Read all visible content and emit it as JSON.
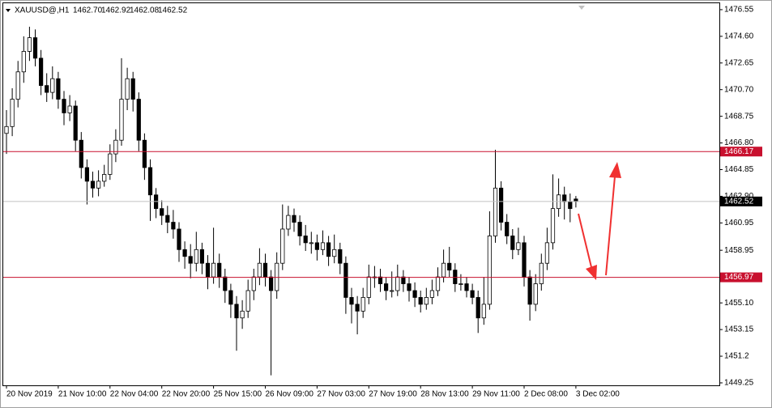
{
  "chart_data": {
    "type": "candlestick",
    "symbol": "XAUUSD@,H1",
    "header_values": [
      "1462.70",
      "1462.92",
      "1462.08",
      "1462.52"
    ],
    "ylim": [
      1449.07,
      1477.02
    ],
    "yticks": [
      1449.25,
      1451.2,
      1453.15,
      {
        "value": 1455.1,
        "label": "1455.10"
      },
      1457.05,
      1458.95,
      1460.95,
      {
        "value": 1462.9,
        "label": "1462.90"
      },
      1464.85,
      {
        "value": 1466.8,
        "label": "1466.80"
      },
      1468.75,
      {
        "value": 1470.7,
        "label": "1470.70"
      },
      1472.65,
      {
        "value": 1474.6,
        "label": "1474.60"
      },
      1476.55
    ],
    "categories": [
      "20 Nov 2019",
      null,
      null,
      null,
      null,
      null,
      null,
      null,
      null,
      "21 Nov 10:00",
      null,
      null,
      null,
      null,
      null,
      null,
      null,
      null,
      "22 Nov 04:00",
      null,
      null,
      null,
      null,
      null,
      null,
      null,
      null,
      "22 Nov 20:00",
      null,
      null,
      null,
      null,
      null,
      null,
      null,
      null,
      "25 Nov 15:00",
      null,
      null,
      null,
      null,
      null,
      null,
      null,
      null,
      "26 Nov 09:00",
      null,
      null,
      null,
      null,
      null,
      null,
      null,
      null,
      "27 Nov 03:00",
      null,
      null,
      null,
      null,
      null,
      null,
      null,
      null,
      "27 Nov 19:00",
      null,
      null,
      null,
      null,
      null,
      null,
      null,
      null,
      "28 Nov 13:00",
      null,
      null,
      null,
      null,
      null,
      null,
      null,
      null,
      "29 Nov 11:00",
      null,
      null,
      null,
      null,
      null,
      null,
      null,
      null,
      "2 Dec 08:00",
      null,
      null,
      null,
      null,
      null,
      null,
      null,
      null,
      "3 Dec 02:00"
    ],
    "ohlc": [
      [
        1467.5,
        1469.2,
        1466.0,
        1468.0
      ],
      [
        1468.0,
        1470.8,
        1467.3,
        1470.0
      ],
      [
        1470.0,
        1472.8,
        1469.4,
        1472.0
      ],
      [
        1472.0,
        1474.6,
        1471.2,
        1473.5
      ],
      [
        1473.5,
        1475.3,
        1472.8,
        1474.5
      ],
      [
        1474.5,
        1475.1,
        1472.4,
        1473.0
      ],
      [
        1473.0,
        1473.6,
        1470.3,
        1471.0
      ],
      [
        1471.0,
        1471.9,
        1469.8,
        1470.5
      ],
      [
        1470.5,
        1472.4,
        1470.0,
        1471.5
      ],
      [
        1471.5,
        1472.0,
        1469.3,
        1470.0
      ],
      [
        1470.0,
        1470.6,
        1468.1,
        1469.0
      ],
      [
        1469.0,
        1470.3,
        1468.4,
        1469.5
      ],
      [
        1469.5,
        1469.9,
        1466.2,
        1467.0
      ],
      [
        1467.0,
        1467.6,
        1464.2,
        1465.0
      ],
      [
        1465.0,
        1465.6,
        1462.3,
        1464.0
      ],
      [
        1464.0,
        1464.7,
        1462.8,
        1463.5
      ],
      [
        1463.5,
        1464.8,
        1462.9,
        1464.0
      ],
      [
        1464.0,
        1465.2,
        1463.6,
        1464.5
      ],
      [
        1464.5,
        1466.7,
        1464.1,
        1466.0
      ],
      [
        1466.0,
        1467.8,
        1465.4,
        1467.0
      ],
      [
        1467.0,
        1473.0,
        1466.6,
        1470.0
      ],
      [
        1470.0,
        1472.3,
        1469.2,
        1471.5
      ],
      [
        1471.5,
        1472.0,
        1469.1,
        1470.0
      ],
      [
        1470.0,
        1470.5,
        1466.2,
        1467.0
      ],
      [
        1467.0,
        1467.5,
        1464.1,
        1465.0
      ],
      [
        1465.0,
        1465.6,
        1461.1,
        1463.0
      ],
      [
        1463.0,
        1463.5,
        1461.3,
        1462.0
      ],
      [
        1462.0,
        1462.6,
        1460.8,
        1461.5
      ],
      [
        1461.5,
        1462.2,
        1460.2,
        1461.0
      ],
      [
        1461.0,
        1461.9,
        1459.8,
        1460.5
      ],
      [
        1460.5,
        1461.0,
        1458.1,
        1459.0
      ],
      [
        1459.0,
        1459.6,
        1457.6,
        1458.5
      ],
      [
        1458.5,
        1459.4,
        1456.9,
        1458.0
      ],
      [
        1458.0,
        1460.3,
        1457.4,
        1459.0
      ],
      [
        1459.0,
        1459.5,
        1457.2,
        1458.0
      ],
      [
        1458.0,
        1458.6,
        1456.1,
        1457.0
      ],
      [
        1457.0,
        1460.6,
        1456.5,
        1458.0
      ],
      [
        1458.0,
        1458.7,
        1456.2,
        1457.0
      ],
      [
        1457.0,
        1457.6,
        1455.1,
        1456.0
      ],
      [
        1456.0,
        1456.5,
        1454.0,
        1455.0
      ],
      [
        1455.0,
        1455.6,
        1451.6,
        1454.0
      ],
      [
        1454.0,
        1455.3,
        1453.2,
        1454.5
      ],
      [
        1454.5,
        1456.8,
        1454.0,
        1456.0
      ],
      [
        1456.0,
        1457.6,
        1455.3,
        1457.0
      ],
      [
        1457.0,
        1459.1,
        1456.4,
        1458.0
      ],
      [
        1458.0,
        1458.7,
        1456.3,
        1457.0
      ],
      [
        1457.0,
        1457.5,
        1449.8,
        1456.0
      ],
      [
        1456.0,
        1458.8,
        1455.4,
        1458.0
      ],
      [
        1458.0,
        1462.3,
        1457.5,
        1460.5
      ],
      [
        1460.5,
        1462.2,
        1460.0,
        1461.5
      ],
      [
        1461.5,
        1462.0,
        1460.3,
        1461.0
      ],
      [
        1461.0,
        1461.5,
        1459.3,
        1460.0
      ],
      [
        1460.0,
        1460.8,
        1458.9,
        1459.5
      ],
      [
        1459.5,
        1460.3,
        1458.7,
        1459.5
      ],
      [
        1459.5,
        1460.1,
        1458.2,
        1459.0
      ],
      [
        1459.0,
        1460.4,
        1458.6,
        1459.5
      ],
      [
        1459.5,
        1460.0,
        1457.8,
        1458.5
      ],
      [
        1458.5,
        1460.1,
        1458.0,
        1459.0
      ],
      [
        1459.0,
        1459.5,
        1457.2,
        1458.0
      ],
      [
        1458.0,
        1458.5,
        1454.3,
        1455.5
      ],
      [
        1455.5,
        1456.2,
        1453.6,
        1455.0
      ],
      [
        1455.0,
        1455.6,
        1452.8,
        1454.5
      ],
      [
        1454.5,
        1456.2,
        1454.0,
        1455.5
      ],
      [
        1455.5,
        1457.9,
        1455.0,
        1457.0
      ],
      [
        1457.0,
        1457.8,
        1456.2,
        1457.0
      ],
      [
        1457.0,
        1457.6,
        1455.9,
        1456.5
      ],
      [
        1456.5,
        1457.0,
        1455.3,
        1456.0
      ],
      [
        1456.0,
        1457.4,
        1455.5,
        1456.0
      ],
      [
        1456.0,
        1457.9,
        1455.6,
        1457.0
      ],
      [
        1457.0,
        1457.5,
        1455.9,
        1456.5
      ],
      [
        1456.5,
        1457.0,
        1455.2,
        1456.0
      ],
      [
        1456.0,
        1456.6,
        1454.8,
        1455.5
      ],
      [
        1455.5,
        1456.0,
        1454.4,
        1455.0
      ],
      [
        1455.0,
        1456.2,
        1454.6,
        1455.5
      ],
      [
        1455.5,
        1456.8,
        1455.0,
        1456.0
      ],
      [
        1456.0,
        1457.7,
        1455.6,
        1457.0
      ],
      [
        1457.0,
        1459.0,
        1456.6,
        1458.0
      ],
      [
        1458.0,
        1459.2,
        1457.0,
        1457.5
      ],
      [
        1457.5,
        1458.0,
        1455.9,
        1456.5
      ],
      [
        1456.5,
        1457.2,
        1456.0,
        1456.5
      ],
      [
        1456.5,
        1457.0,
        1455.5,
        1456.0
      ],
      [
        1456.0,
        1456.5,
        1455.0,
        1455.5
      ],
      [
        1455.5,
        1456.0,
        1452.9,
        1454.0
      ],
      [
        1454.0,
        1457.0,
        1453.5,
        1455.0
      ],
      [
        1455.0,
        1461.8,
        1454.6,
        1460.0
      ],
      [
        1460.0,
        1466.3,
        1459.5,
        1463.5
      ],
      [
        1463.5,
        1464.0,
        1460.4,
        1461.0
      ],
      [
        1461.0,
        1461.6,
        1459.4,
        1460.0
      ],
      [
        1460.0,
        1460.5,
        1458.3,
        1459.0
      ],
      [
        1459.0,
        1460.6,
        1458.6,
        1459.5
      ],
      [
        1459.5,
        1460.0,
        1456.3,
        1457.0
      ],
      [
        1457.0,
        1457.5,
        1453.8,
        1455.0
      ],
      [
        1455.0,
        1457.2,
        1454.5,
        1456.5
      ],
      [
        1456.5,
        1458.7,
        1456.0,
        1458.0
      ],
      [
        1458.0,
        1460.6,
        1457.5,
        1459.5
      ],
      [
        1459.5,
        1464.5,
        1459.0,
        1462.0
      ],
      [
        1462.0,
        1464.2,
        1461.4,
        1463.0
      ],
      [
        1463.0,
        1463.6,
        1461.2,
        1462.5
      ],
      [
        1462.5,
        1463.1,
        1461.0,
        1462.0
      ],
      [
        1462.7,
        1462.92,
        1462.08,
        1462.52
      ]
    ],
    "levels": [
      {
        "value": 1466.17,
        "color": "#c8102e"
      },
      {
        "value": 1456.97,
        "color": "#c8102e"
      },
      {
        "value": 1462.52,
        "color": "#000000",
        "line": "#c0c0c0"
      }
    ],
    "bull_color": "#ffffff",
    "bear_color": "#000000"
  }
}
